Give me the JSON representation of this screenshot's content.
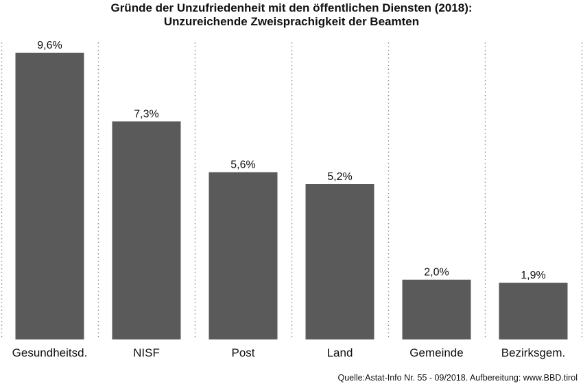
{
  "colors": {
    "bar": "#5a5a5a",
    "separator": "#8c8c8c",
    "text": "#111111",
    "background": "#ffffff"
  },
  "chart_data": {
    "type": "bar",
    "title": "Gründe der Unzufriedenheit mit den öffentlichen Diensten (2018):",
    "subtitle": "Unzureichende Zweisprachigkeit der Beamten",
    "categories": [
      "Gesundheitsd.",
      "NISF",
      "Post",
      "Land",
      "Gemeinde",
      "Bezirksgem."
    ],
    "values": [
      9.6,
      7.3,
      5.6,
      5.2,
      2.0,
      1.9
    ],
    "value_labels": [
      "9,6%",
      "7,3%",
      "5,6%",
      "5,2%",
      "2,0%",
      "1,9%"
    ],
    "xlabel": "",
    "ylabel": "",
    "ylim": [
      0,
      9.6
    ],
    "grid": false,
    "legend": "none",
    "separators": "dotted-vertical"
  },
  "source": "Quelle:Astat-Info Nr. 55 - 09/2018. Aufbereitung: www.BBD.tirol"
}
